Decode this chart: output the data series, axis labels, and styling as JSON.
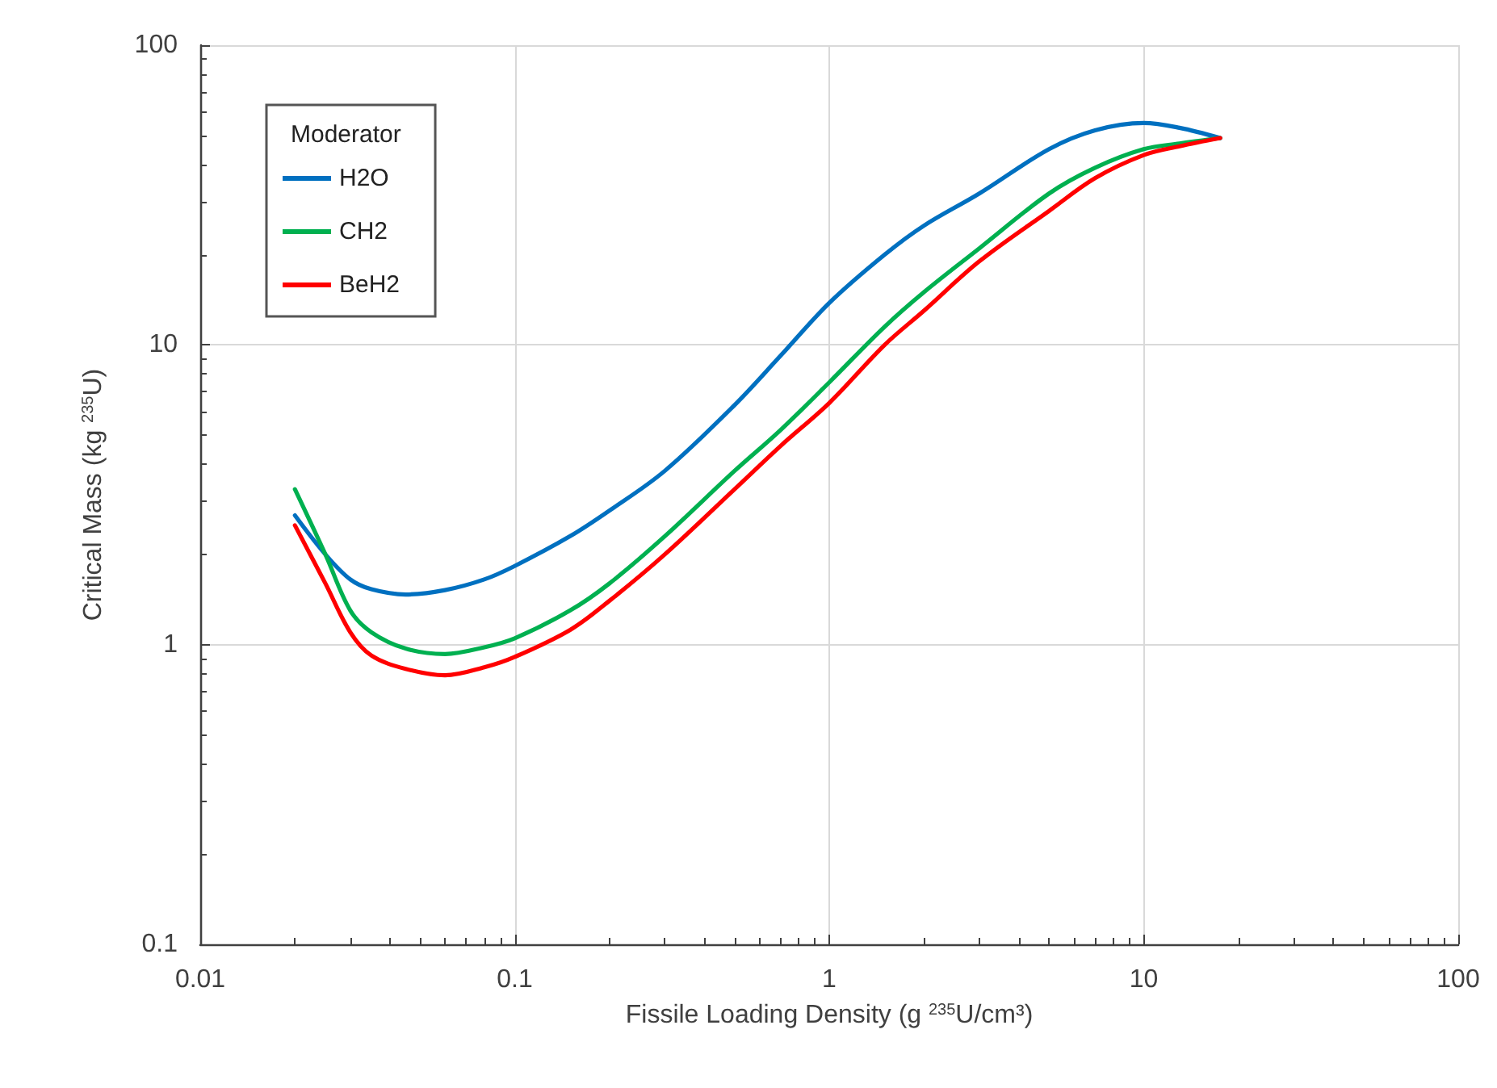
{
  "chart_data": {
    "type": "line",
    "xlabel": "Fissile Loading Density (g $^{235}$U/cm³)",
    "ylabel": "Critical Mass (kg $^{235}$U)",
    "legend_title": "Moderator",
    "x": [
      0.02,
      0.025,
      0.03,
      0.035,
      0.045,
      0.06,
      0.08,
      0.1,
      0.15,
      0.2,
      0.3,
      0.5,
      0.7,
      1,
      1.5,
      2,
      3,
      5,
      7,
      10,
      13,
      17.5
    ],
    "series": [
      {
        "name": "H2O",
        "color": "#0070c0",
        "values": [
          2.7,
          2.0,
          1.65,
          1.53,
          1.47,
          1.52,
          1.65,
          1.83,
          2.3,
          2.8,
          3.8,
          6.3,
          9.2,
          13.8,
          20,
          25,
          32,
          45,
          52,
          55,
          53,
          49
        ]
      },
      {
        "name": "CH2",
        "color": "#00b050",
        "values": [
          3.3,
          2.0,
          1.3,
          1.1,
          0.97,
          0.93,
          0.98,
          1.05,
          1.3,
          1.6,
          2.3,
          3.8,
          5.2,
          7.5,
          11.5,
          15,
          21,
          32,
          39,
          45,
          47,
          49
        ]
      },
      {
        "name": "BeH2",
        "color": "#ff0000",
        "values": [
          2.5,
          1.6,
          1.1,
          0.92,
          0.83,
          0.79,
          0.84,
          0.91,
          1.12,
          1.4,
          2.0,
          3.3,
          4.6,
          6.4,
          10,
          13,
          19,
          28,
          36,
          43,
          46,
          49
        ]
      }
    ],
    "xlim": [
      0.01,
      100
    ],
    "xticks": [
      0.01,
      0.1,
      1,
      10,
      100
    ],
    "ylim": [
      0.1,
      100
    ],
    "yticks": [
      0.1,
      1,
      10,
      100
    ],
    "log": "xy",
    "grid": true,
    "legend": "top left",
    "marker": "none",
    "line_style": "solid"
  }
}
